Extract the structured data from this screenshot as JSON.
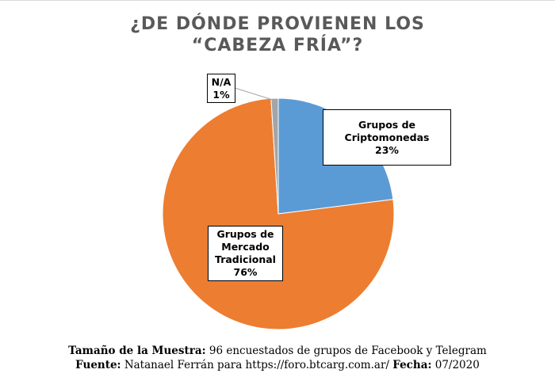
{
  "chart_data": {
    "type": "pie",
    "title_line1": "¿DE DÓNDE PROVIENEN LOS",
    "title_line2": "“CABEZA FRÍA”?",
    "slices": [
      {
        "name_lines": [
          "Grupos de",
          "Criptomonedas"
        ],
        "value": 23,
        "label": "23%",
        "color": "#5b9bd5"
      },
      {
        "name_lines": [
          "Grupos de",
          "Mercado",
          "Tradicional"
        ],
        "value": 76,
        "label": "76%",
        "color": "#ed7d31"
      },
      {
        "name_lines": [
          "N/A"
        ],
        "value": 1,
        "label": "1%",
        "color": "#a5a5a5"
      }
    ]
  },
  "footer": {
    "sample_label": "Tamaño de la Muestra:",
    "sample_value": " 96 encuestados de grupos de Facebook y Telegram",
    "source_label": "Fuente:",
    "source_value": " Natanael Ferrán para https://foro.btcarg.com.ar/ ",
    "date_label": "Fecha:",
    "date_value": " 07/2020"
  }
}
